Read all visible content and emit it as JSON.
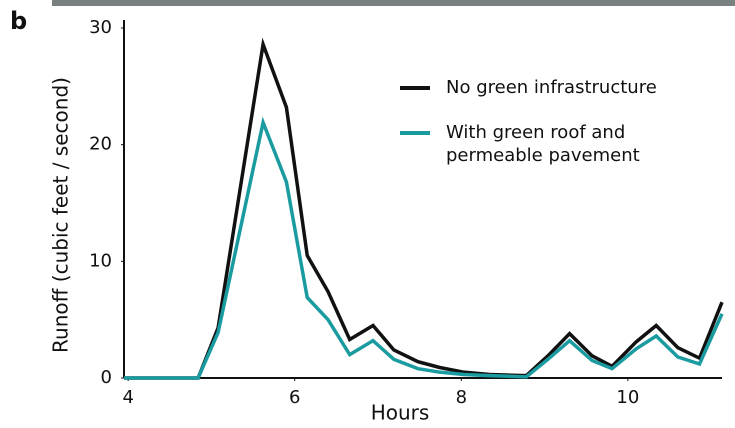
{
  "panel_label": "b",
  "chart_data": {
    "type": "line",
    "xlabel": "Hours",
    "ylabel": "Runoff (cubic feet / second)",
    "x": [
      3.95,
      4.84,
      5.08,
      5.62,
      5.9,
      6.15,
      6.4,
      6.66,
      6.94,
      7.19,
      7.48,
      7.74,
      8.03,
      8.34,
      8.78,
      9.04,
      9.3,
      9.57,
      9.81,
      10.1,
      10.34,
      10.6,
      10.86,
      11.13
    ],
    "series": [
      {
        "name": "No green infrastructure",
        "color": "#111111",
        "values": [
          0,
          0,
          4.3,
          28.6,
          23.2,
          10.5,
          7.4,
          3.3,
          4.5,
          2.4,
          1.4,
          0.9,
          0.5,
          0.3,
          0.2,
          1.9,
          3.8,
          1.9,
          1.0,
          3.1,
          4.5,
          2.6,
          1.7,
          6.5
        ]
      },
      {
        "name": "With green roof and permeable pavement",
        "color": "#1a9ba0",
        "values": [
          0,
          0,
          3.9,
          21.9,
          16.8,
          6.9,
          5.0,
          2.0,
          3.2,
          1.6,
          0.8,
          0.5,
          0.3,
          0.2,
          0.1,
          1.6,
          3.2,
          1.5,
          0.8,
          2.5,
          3.6,
          1.8,
          1.2,
          5.5
        ]
      }
    ],
    "xlim": [
      3.95,
      11.13
    ],
    "xticks": [
      4,
      6,
      8,
      10
    ],
    "ylim": [
      0,
      30
    ],
    "yticks": [
      0,
      10,
      20,
      30
    ],
    "grid": false,
    "legend": "upper right"
  }
}
